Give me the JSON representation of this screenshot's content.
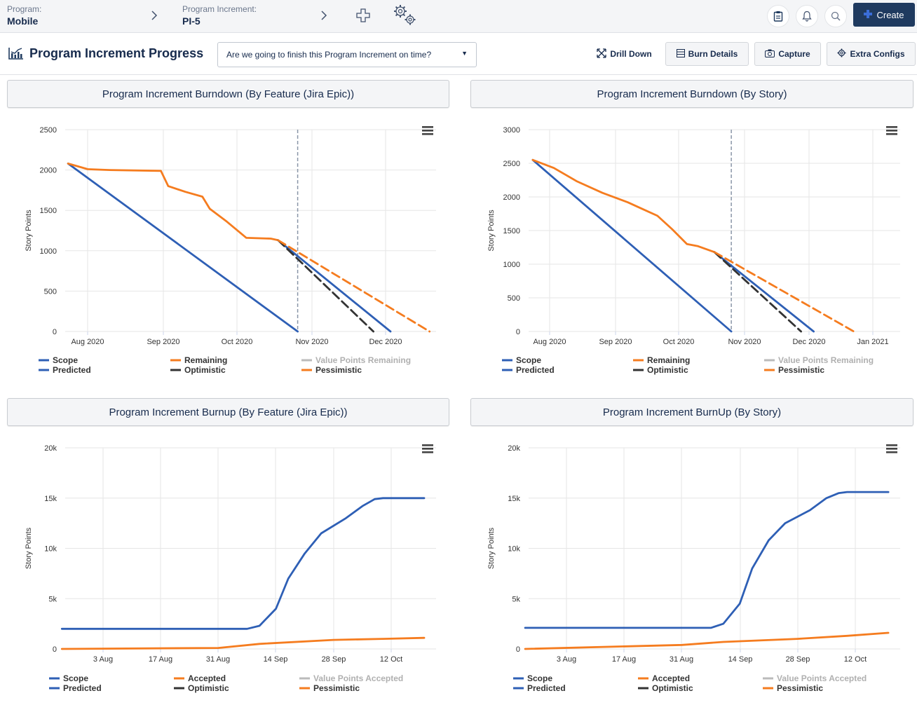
{
  "topbar": {
    "program_label": "Program:",
    "program_value": "Mobile",
    "pi_label": "Program Increment:",
    "pi_value": "PI-5",
    "create_label": "Create"
  },
  "header": {
    "title": "Program Increment Progress",
    "question": "Are we going to finish this Program Increment on time?",
    "buttons": {
      "drill": "Drill Down",
      "burn": "Burn Details",
      "capture": "Capture",
      "extra": "Extra Configs"
    }
  },
  "colors": {
    "scope": "#2e5fb5",
    "remaining": "#f57c1f",
    "optimistic": "#333333",
    "value": "#aaaaaa",
    "accent": "#1f3a5f"
  },
  "panels": [
    "Program Increment Burndown (By Feature (Jira Epic))",
    "Program Increment Burndown (By Story)",
    "Program Increment Burnup (By Feature (Jira Epic))",
    "Program Increment BurnUp (By Story)"
  ],
  "chart_data": [
    {
      "type": "line",
      "ylabel": "Story Points",
      "ylim": [
        0,
        2500
      ],
      "yticks": [
        "2500",
        "2000",
        "1500",
        "1000",
        "500",
        "0"
      ],
      "xticks": [
        "Aug 2020",
        "Sep 2020",
        "Oct 2020",
        "Nov 2020",
        "Dec 2020"
      ],
      "legend": [
        "Scope",
        "Predicted",
        "Remaining",
        "Optimistic",
        "Value Points Remaining",
        "Pessimistic"
      ],
      "series": [
        {
          "name": "Scope",
          "x": [
            "2020-07-24",
            "2020-10-26"
          ],
          "y": [
            2080,
            0
          ]
        },
        {
          "name": "Remaining",
          "x": [
            "2020-07-24",
            "2020-08-01",
            "2020-08-10",
            "2020-08-31",
            "2020-09-03",
            "2020-09-10",
            "2020-09-17",
            "2020-09-20",
            "2020-09-27",
            "2020-10-05",
            "2020-10-15",
            "2020-10-18"
          ],
          "y": [
            2080,
            2010,
            2000,
            1990,
            1800,
            1730,
            1670,
            1520,
            1360,
            1160,
            1150,
            1130
          ]
        },
        {
          "name": "Predicted",
          "x": [
            "2020-10-18",
            "2020-12-03"
          ],
          "y": [
            1130,
            0
          ]
        },
        {
          "name": "Optimistic",
          "x": [
            "2020-10-18",
            "2020-11-26"
          ],
          "y": [
            1130,
            0
          ]
        },
        {
          "name": "Pessimistic",
          "x": [
            "2020-10-18",
            "2020-12-19"
          ],
          "y": [
            1130,
            0
          ]
        }
      ]
    },
    {
      "type": "line",
      "ylabel": "Story Points",
      "ylim": [
        0,
        3000
      ],
      "yticks": [
        "3000",
        "2500",
        "2000",
        "1500",
        "1000",
        "500",
        "0"
      ],
      "xticks": [
        "Aug 2020",
        "Sep 2020",
        "Oct 2020",
        "Nov 2020",
        "Dec 2020",
        "Jan 2021"
      ],
      "legend": [
        "Scope",
        "Predicted",
        "Remaining",
        "Optimistic",
        "Value Points Remaining",
        "Pessimistic"
      ],
      "series": [
        {
          "name": "Scope",
          "x": [
            "2020-07-24",
            "2020-10-26"
          ],
          "y": [
            2550,
            0
          ]
        },
        {
          "name": "Remaining",
          "x": [
            "2020-07-24",
            "2020-08-03",
            "2020-08-14",
            "2020-08-26",
            "2020-09-07",
            "2020-09-14",
            "2020-09-21",
            "2020-09-28",
            "2020-10-05",
            "2020-10-10",
            "2020-10-18"
          ],
          "y": [
            2550,
            2430,
            2230,
            2060,
            1920,
            1820,
            1720,
            1520,
            1300,
            1270,
            1180
          ]
        },
        {
          "name": "Predicted",
          "x": [
            "2020-10-18",
            "2020-12-04"
          ],
          "y": [
            1180,
            0
          ]
        },
        {
          "name": "Optimistic",
          "x": [
            "2020-10-18",
            "2020-11-28"
          ],
          "y": [
            1180,
            0
          ]
        },
        {
          "name": "Pessimistic",
          "x": [
            "2020-10-18",
            "2020-12-23"
          ],
          "y": [
            1180,
            0
          ]
        }
      ]
    },
    {
      "type": "line",
      "ylabel": "Story Points",
      "ylim": [
        0,
        20000
      ],
      "yticks": [
        "20k",
        "15k",
        "10k",
        "5k",
        "0"
      ],
      "xticks": [
        "3 Aug",
        "17 Aug",
        "31 Aug",
        "14 Sep",
        "28 Sep",
        "12 Oct"
      ],
      "legend": [
        "Scope",
        "Predicted",
        "Accepted",
        "Optimistic",
        "Value Points Accepted",
        "Pessimistic"
      ],
      "series": [
        {
          "name": "Scope",
          "x": [
            "2020-07-24",
            "2020-09-07",
            "2020-09-10",
            "2020-09-14",
            "2020-09-17",
            "2020-09-21",
            "2020-09-25",
            "2020-10-01",
            "2020-10-05",
            "2020-10-08",
            "2020-10-10",
            "2020-10-20"
          ],
          "y": [
            2000,
            2000,
            2300,
            4000,
            7000,
            9500,
            11500,
            13000,
            14200,
            14900,
            15000,
            15000
          ]
        },
        {
          "name": "Accepted",
          "x": [
            "2020-07-24",
            "2020-08-31",
            "2020-09-10",
            "2020-09-28",
            "2020-10-10",
            "2020-10-20"
          ],
          "y": [
            0,
            100,
            500,
            900,
            1000,
            1100
          ]
        }
      ]
    },
    {
      "type": "line",
      "ylabel": "Story Points",
      "ylim": [
        0,
        20000
      ],
      "yticks": [
        "20k",
        "15k",
        "10k",
        "5k",
        "0"
      ],
      "xticks": [
        "3 Aug",
        "17 Aug",
        "31 Aug",
        "14 Sep",
        "28 Sep",
        "12 Oct"
      ],
      "legend": [
        "Scope",
        "Predicted",
        "Accepted",
        "Optimistic",
        "Value Points Accepted",
        "Pessimistic"
      ],
      "series": [
        {
          "name": "Scope",
          "x": [
            "2020-07-24",
            "2020-09-07",
            "2020-09-10",
            "2020-09-14",
            "2020-09-17",
            "2020-09-21",
            "2020-09-25",
            "2020-10-01",
            "2020-10-05",
            "2020-10-08",
            "2020-10-10",
            "2020-10-20"
          ],
          "y": [
            2100,
            2100,
            2500,
            4500,
            8000,
            10800,
            12500,
            13800,
            15000,
            15500,
            15600,
            15600
          ]
        },
        {
          "name": "Accepted",
          "x": [
            "2020-07-24",
            "2020-08-31",
            "2020-09-10",
            "2020-09-28",
            "2020-10-10",
            "2020-10-20"
          ],
          "y": [
            0,
            400,
            700,
            1000,
            1300,
            1600
          ]
        }
      ]
    }
  ]
}
